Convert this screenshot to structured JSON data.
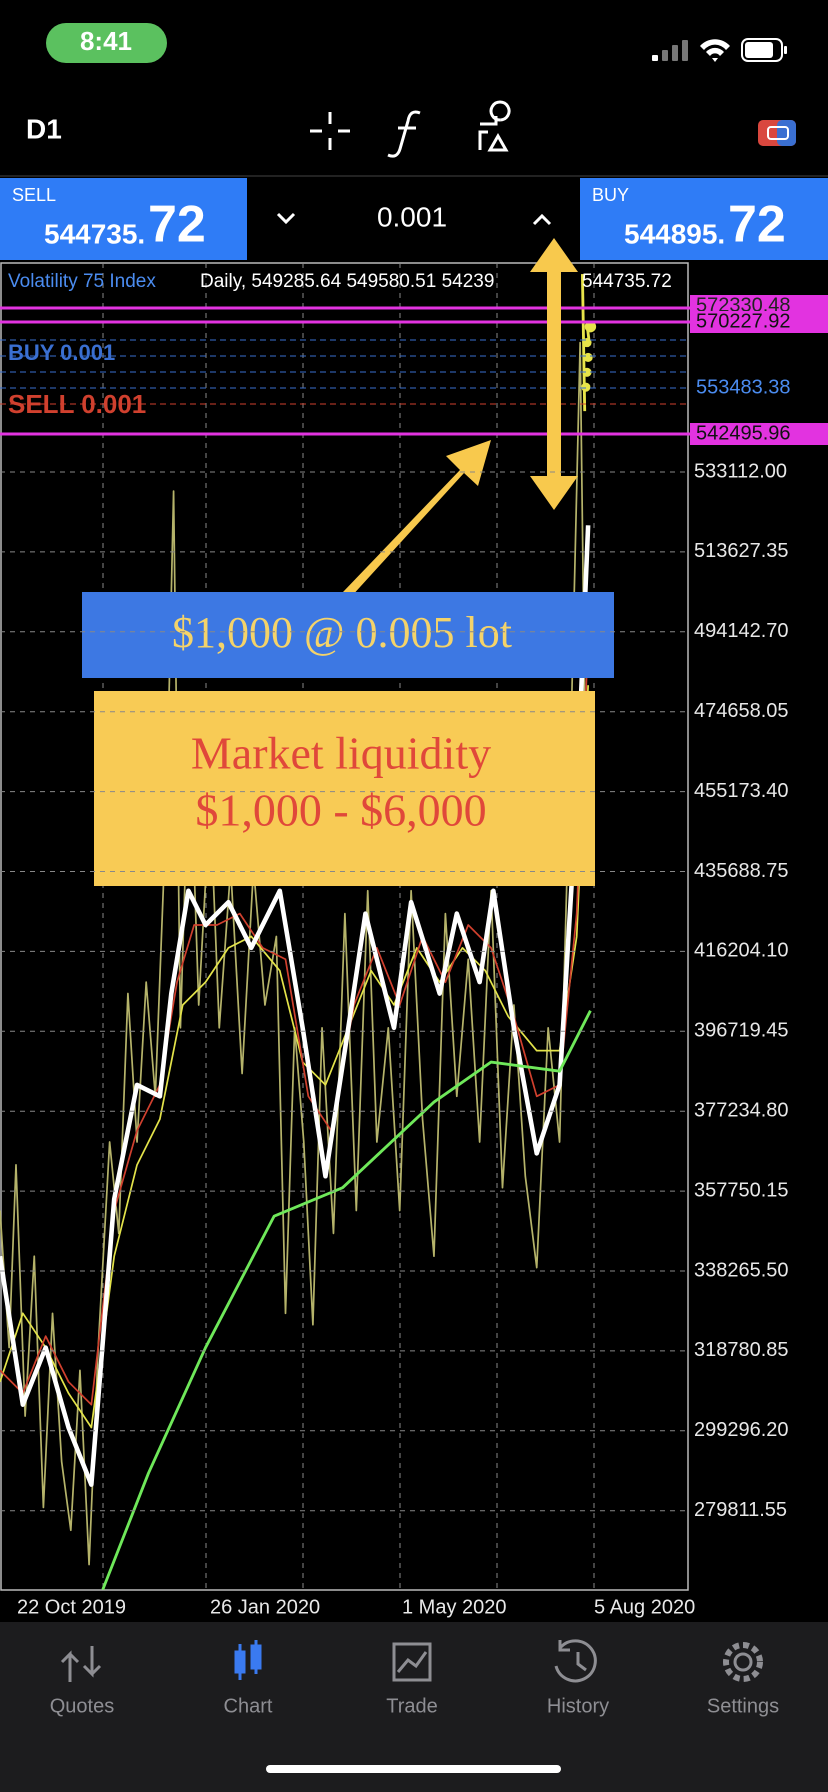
{
  "status_bar": {
    "time": "8:41"
  },
  "toolbar": {
    "timeframe": "D1"
  },
  "trade_panel": {
    "sell_label": "SELL",
    "sell_price_main": "544735.",
    "sell_price_big": "72",
    "volume": "0.001",
    "buy_label": "BUY",
    "buy_price_main": "544895.",
    "buy_price_big": "72"
  },
  "chart": {
    "symbol": "Volatility 75 Index",
    "info": "Daily, 549285.64 549580.51 54239",
    "last_price": "544735.72",
    "orders": [
      "BUY 0.001",
      "SELL 0.001"
    ],
    "price_tags": [
      "572330.48",
      "570227.92",
      "553483.38",
      "542495.96"
    ],
    "price_axis": [
      "533112.00",
      "513627.35",
      "494142.70",
      "474658.05",
      "455173.40",
      "435688.75",
      "416204.10",
      "396719.45",
      "377234.80",
      "357750.15",
      "338265.50",
      "318780.85",
      "299296.20",
      "279811.55"
    ],
    "date_axis": [
      "22 Oct 2019",
      "26 Jan 2020",
      "1 May 2020",
      "5 Aug 2020"
    ]
  },
  "annotations": {
    "lot_box": "$1,000 @ 0.005 lot",
    "liquidity_title": "Market liquidity",
    "liquidity_range": "$1,000 - $6,000"
  },
  "tab_bar": {
    "tabs": [
      "Quotes",
      "Chart",
      "Trade",
      "History",
      "Settings"
    ]
  }
}
